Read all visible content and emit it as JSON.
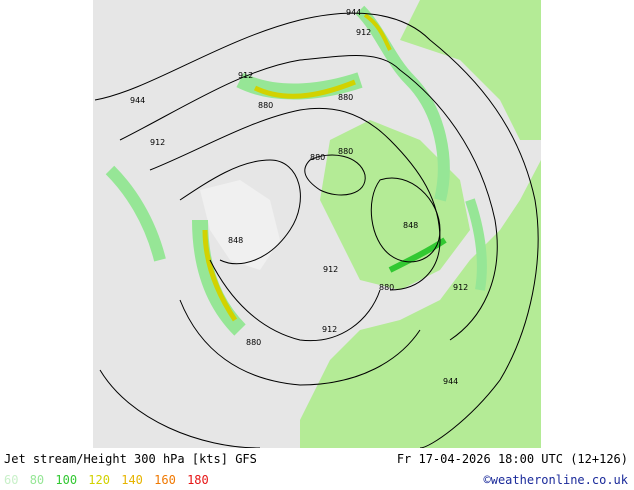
{
  "map": {
    "product": "Jet stream/Height 300 hPa [kts] GFS",
    "valid_time": "Fr 17-04-2026 18:00 UTC (12+126)",
    "credit": "©weatheronline.co.uk",
    "contour_labels": [
      "944",
      "912",
      "912",
      "880",
      "880",
      "880",
      "880",
      "848",
      "848",
      "912",
      "880",
      "912",
      "912",
      "880",
      "944",
      "944",
      "912"
    ],
    "legend": {
      "levels": [
        {
          "value": "60",
          "color": "#c8f0c8"
        },
        {
          "value": "80",
          "color": "#96e696"
        },
        {
          "value": "100",
          "color": "#32c832"
        },
        {
          "value": "120",
          "color": "#d2d200"
        },
        {
          "value": "140",
          "color": "#e6b400"
        },
        {
          "value": "160",
          "color": "#f07800"
        },
        {
          "value": "180",
          "color": "#e61414"
        }
      ]
    },
    "colors": {
      "ocean": "#e6e6e6",
      "land": "#b4eb96",
      "ice": "#f0f0f0",
      "contour": "#000000",
      "coast": "#a0a0a0"
    }
  }
}
